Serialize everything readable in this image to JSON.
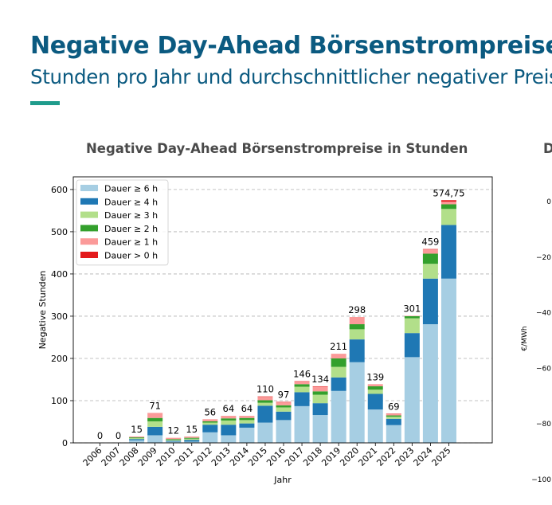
{
  "header": {
    "title": "Negative Day-Ahead Börsenstrompreise",
    "subtitle": "Stunden pro Jahr und durchschnittlicher negativer Preis"
  },
  "colors": {
    "title": "#0b5a80",
    "accent": "#1f9c8c",
    "chart_title": "#4a4a4a"
  },
  "chart_data": [
    {
      "type": "bar",
      "stacked": true,
      "title": "Negative Day-Ahead Börsenstrompreise in Stunden",
      "xlabel": "Jahr",
      "ylabel": "Negative Stunden",
      "ylim": [
        0,
        630
      ],
      "yticks": [
        0,
        100,
        200,
        300,
        400,
        500,
        600
      ],
      "grid": "horizontal dashed",
      "legend_position": "top-left",
      "categories": [
        "2006",
        "2007",
        "2008",
        "2009",
        "2010",
        "2011",
        "2012",
        "2013",
        "2014",
        "2015",
        "2016",
        "2017",
        "2018",
        "2019",
        "2020",
        "2021",
        "2022",
        "2023",
        "2024",
        "2025"
      ],
      "series": [
        {
          "name": "Dauer ≥ 6 h",
          "color": "#a6cee3",
          "values": [
            0,
            0,
            6,
            18,
            3,
            3,
            25,
            18,
            36,
            48,
            54,
            87,
            66,
            123,
            191,
            79,
            42,
            203,
            281,
            389
          ]
        },
        {
          "name": "Dauer ≥ 4 h",
          "color": "#1f78b4",
          "values": [
            0,
            0,
            3,
            20,
            2,
            4,
            18,
            25,
            10,
            40,
            20,
            33,
            28,
            32,
            54,
            37,
            15,
            57,
            108,
            127
          ]
        },
        {
          "name": "Dauer ≥ 3 h",
          "color": "#b2df8a",
          "values": [
            0,
            0,
            2,
            13,
            2,
            3,
            5,
            10,
            8,
            7,
            10,
            13,
            20,
            25,
            24,
            10,
            5,
            35,
            35,
            38
          ]
        },
        {
          "name": "Dauer ≥ 2 h",
          "color": "#33a02c",
          "values": [
            0,
            0,
            2,
            8,
            2,
            2,
            3,
            5,
            5,
            6,
            5,
            6,
            8,
            20,
            12,
            8,
            3,
            5,
            24,
            11
          ]
        },
        {
          "name": "Dauer ≥ 1 h",
          "color": "#fb9a99",
          "values": [
            0,
            0,
            2,
            12,
            3,
            3,
            5,
            6,
            5,
            8,
            7,
            6,
            11,
            11,
            17,
            5,
            3,
            1,
            10,
            6
          ]
        },
        {
          "name": "Dauer > 0 h",
          "color": "#e31a1c",
          "values": [
            0,
            0,
            0,
            0,
            0,
            0,
            0,
            0,
            0,
            1,
            1,
            1,
            1,
            0,
            0,
            0,
            1,
            0,
            1,
            3.75
          ]
        }
      ],
      "totals": [
        0,
        0,
        15,
        71,
        12,
        15,
        56,
        64,
        64,
        110,
        97,
        146,
        134,
        211,
        298,
        139,
        69,
        301,
        459,
        574.75
      ],
      "total_labels": [
        "0",
        "0",
        "15",
        "71",
        "12",
        "15",
        "56",
        "64",
        "64",
        "110",
        "97",
        "146",
        "134",
        "211",
        "298",
        "139",
        "69",
        "301",
        "459",
        "574,75"
      ]
    },
    {
      "type": "line",
      "title": "D",
      "ylabel": "€/MWh",
      "ylim": [
        -100,
        0
      ],
      "yticks": [
        0,
        -20,
        -40,
        -60,
        -80,
        -100
      ],
      "ytick_labels": [
        "0",
        "−20",
        "−40",
        "−60",
        "−80",
        "−100"
      ],
      "note": "partially visible chart, cropped at right edge"
    }
  ]
}
